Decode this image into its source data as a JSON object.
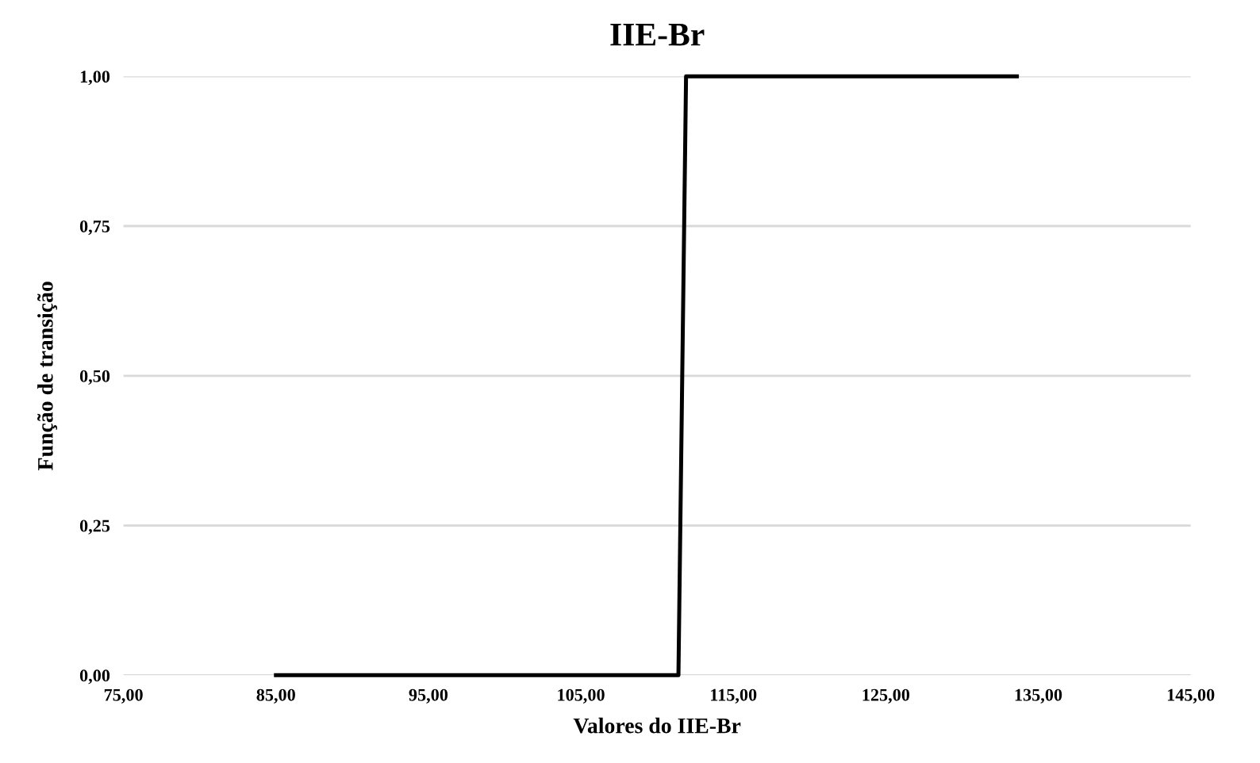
{
  "chart_data": {
    "type": "line",
    "title": "IIE-Br",
    "xlabel": "Valores do IIE-Br",
    "ylabel": "Função de transição",
    "series": [
      {
        "color": "#000000",
        "x": [
          85,
          111.4,
          111.9,
          133.6
        ],
        "values": [
          0,
          0,
          1,
          1
        ]
      }
    ],
    "xlim": [
      75,
      145
    ],
    "xticks": [
      {
        "value": 75,
        "label": "75,00"
      },
      {
        "value": 85,
        "label": "85,00"
      },
      {
        "value": 95,
        "label": "95,00"
      },
      {
        "value": 105,
        "label": "105,00"
      },
      {
        "value": 115,
        "label": "115,00"
      },
      {
        "value": 125,
        "label": "125,00"
      },
      {
        "value": 135,
        "label": "135,00"
      },
      {
        "value": 145,
        "label": "145,00"
      }
    ],
    "ylim": [
      0,
      1
    ],
    "yticks": [
      {
        "value": 0,
        "label": "0,00"
      },
      {
        "value": 0.25,
        "label": "0,25"
      },
      {
        "value": 0.5,
        "label": "0,50"
      },
      {
        "value": 0.75,
        "label": "0,75"
      },
      {
        "value": 1,
        "label": "1,00"
      }
    ],
    "grid": "y",
    "marker": "none",
    "line_style": "solid",
    "legend": false
  }
}
